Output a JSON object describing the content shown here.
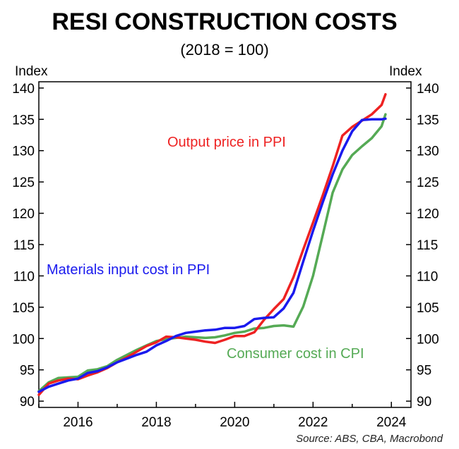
{
  "chart_data": {
    "type": "line",
    "title": "RESI CONSTRUCTION COSTS",
    "subtitle": "(2018 = 100)",
    "ylabel_left": "Index",
    "ylabel_right": "Index",
    "xlim": [
      2015,
      2024.5
    ],
    "ylim": [
      89,
      141
    ],
    "y_ticks": [
      90,
      95,
      100,
      105,
      110,
      115,
      120,
      125,
      130,
      135,
      140
    ],
    "x_ticks": [
      2016,
      2018,
      2020,
      2022,
      2024
    ],
    "grid": false,
    "source": "Source: ABS, CBA, Macrobond",
    "series": [
      {
        "name": "Output price in PPI",
        "color": "#ee2222",
        "x": [
          2015.0,
          2015.25,
          2015.5,
          2015.75,
          2016.0,
          2016.25,
          2016.5,
          2016.75,
          2017.0,
          2017.25,
          2017.5,
          2017.75,
          2018.0,
          2018.25,
          2018.5,
          2018.75,
          2019.0,
          2019.25,
          2019.5,
          2019.75,
          2020.0,
          2020.25,
          2020.5,
          2020.75,
          2021.0,
          2021.25,
          2021.5,
          2021.75,
          2022.0,
          2022.25,
          2022.5,
          2022.75,
          2023.0,
          2023.25,
          2023.5,
          2023.75,
          2023.85
        ],
        "values": [
          91.0,
          92.8,
          93.3,
          93.6,
          93.5,
          94.1,
          94.6,
          95.3,
          96.2,
          97.0,
          97.9,
          98.8,
          99.4,
          100.3,
          100.2,
          100.0,
          99.8,
          99.5,
          99.3,
          99.8,
          100.4,
          100.4,
          101.0,
          103.0,
          104.7,
          106.3,
          109.8,
          114.2,
          118.5,
          122.9,
          127.5,
          132.4,
          133.8,
          134.8,
          135.8,
          137.3,
          139.0
        ]
      },
      {
        "name": "Materials input cost in PPI",
        "color": "#1a1aee",
        "x": [
          2015.0,
          2015.25,
          2015.5,
          2015.75,
          2016.0,
          2016.25,
          2016.5,
          2016.75,
          2017.0,
          2017.25,
          2017.5,
          2017.75,
          2018.0,
          2018.25,
          2018.5,
          2018.75,
          2019.0,
          2019.25,
          2019.5,
          2019.75,
          2020.0,
          2020.25,
          2020.5,
          2020.75,
          2021.0,
          2021.25,
          2021.5,
          2021.75,
          2022.0,
          2022.25,
          2022.5,
          2022.75,
          2023.0,
          2023.25,
          2023.5,
          2023.75,
          2023.85
        ],
        "values": [
          91.5,
          92.3,
          92.8,
          93.3,
          93.6,
          94.5,
          94.8,
          95.4,
          96.2,
          96.8,
          97.4,
          97.9,
          98.9,
          99.6,
          100.4,
          100.9,
          101.1,
          101.3,
          101.4,
          101.7,
          101.7,
          102.0,
          103.1,
          103.3,
          103.4,
          104.8,
          107.3,
          112.3,
          117.2,
          121.8,
          126.2,
          130.0,
          133.1,
          134.9,
          135.0,
          135.0,
          135.1
        ]
      },
      {
        "name": "Consumer cost in CPI",
        "color": "#55aa55",
        "x": [
          2015.0,
          2015.25,
          2015.5,
          2015.75,
          2016.0,
          2016.25,
          2016.5,
          2016.75,
          2017.0,
          2017.25,
          2017.5,
          2017.75,
          2018.0,
          2018.25,
          2018.5,
          2018.75,
          2019.0,
          2019.25,
          2019.5,
          2019.75,
          2020.0,
          2020.25,
          2020.5,
          2020.75,
          2021.0,
          2021.25,
          2021.5,
          2021.75,
          2022.0,
          2022.25,
          2022.5,
          2022.75,
          2023.0,
          2023.25,
          2023.5,
          2023.75,
          2023.85
        ],
        "values": [
          91.6,
          93.0,
          93.7,
          93.8,
          93.9,
          94.9,
          95.1,
          95.6,
          96.6,
          97.4,
          98.2,
          98.9,
          99.6,
          99.9,
          100.1,
          100.3,
          100.2,
          100.1,
          100.2,
          100.5,
          100.9,
          101.1,
          101.6,
          101.7,
          102.0,
          102.1,
          101.9,
          105.1,
          110.0,
          116.6,
          123.3,
          127.0,
          129.3,
          130.7,
          132.0,
          133.9,
          135.8
        ]
      }
    ],
    "annotations": [
      {
        "text": "Output price in PPI",
        "color": "#ee2222"
      },
      {
        "text": "Materials input cost in PPI",
        "color": "#1a1aee"
      },
      {
        "text": "Consumer cost in CPI",
        "color": "#55aa55"
      }
    ]
  }
}
